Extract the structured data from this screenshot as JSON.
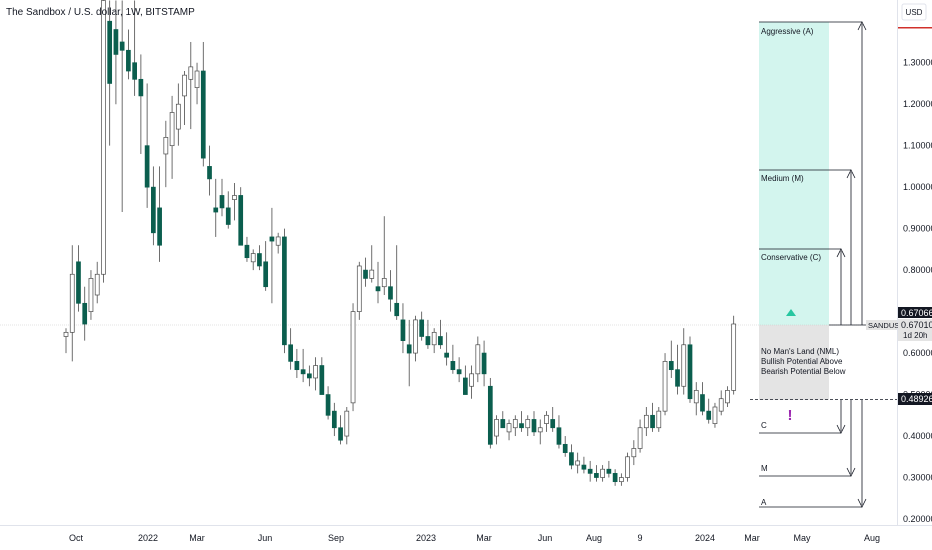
{
  "header": {
    "title": "The Sandbox / U.S. dollar, 1W, BITSTAMP",
    "currency": "USD"
  },
  "price_badges": {
    "zone_top": "0.67066",
    "symbol": "SANDUSD",
    "last": "0.67010",
    "countdown": "1d 20h",
    "zone_bottom": "0.48926"
  },
  "zones": {
    "aggressive": "Aggressive (A)",
    "medium": "Medium (M)",
    "conservative": "Conservative (C)",
    "nml_line1": "No Man's Land (NML)",
    "nml_line2": "Bullish Potential Above",
    "nml_line3": "Bearish Potential Below",
    "low_c": "C",
    "low_m": "M",
    "low_a": "A",
    "exclamation": "!"
  },
  "colors": {
    "up_body": "#ffffff",
    "down_body": "#0b5e4e",
    "wick": "#4a4a4a",
    "target_zone": "#d3f5ee",
    "nml_zone": "#e4e4e4",
    "bull_marker": "#26c6a0",
    "bear_marker": "#9c27b0",
    "text": "#131722"
  },
  "chart_data": {
    "type": "candlestick",
    "title": "The Sandbox / U.S. dollar, 1W, BITSTAMP",
    "y_axis_ticks": [
      0.2,
      0.3,
      0.4,
      0.5,
      0.6,
      0.7,
      0.8,
      0.9,
      1.0,
      1.1,
      1.2,
      1.3
    ],
    "y_axis_labels": [
      "0.20000",
      "0.30000",
      "0.40000",
      "0.50000",
      "0.60000",
      "0.70000",
      "0.80000",
      "0.90000",
      "1.00000",
      "1.10000",
      "1.20000",
      "1.30000"
    ],
    "ylim": [
      0.18,
      1.38
    ],
    "x_axis_labels": [
      "Oct",
      "2022",
      "Mar",
      "Jun",
      "Sep",
      "2023",
      "Mar",
      "Jun",
      "Aug",
      "9",
      "2024",
      "Mar",
      "May",
      "Aug"
    ],
    "levels": {
      "nml_top": 0.67066,
      "nml_bottom": 0.48926,
      "last_price": 0.6701,
      "upside_conservative": 0.855,
      "upside_medium": 1.04,
      "upside_aggressive": 1.395,
      "downside_conservative": 0.42,
      "downside_medium": 0.335,
      "downside_aggressive": 0.225
    },
    "candles": [
      [
        0.64,
        0.66,
        0.6,
        0.65
      ],
      [
        0.65,
        0.86,
        0.58,
        0.79
      ],
      [
        0.82,
        0.86,
        0.7,
        0.72
      ],
      [
        0.72,
        0.76,
        0.63,
        0.67
      ],
      [
        0.7,
        0.8,
        0.68,
        0.78
      ],
      [
        0.74,
        0.82,
        0.72,
        0.79
      ],
      [
        0.79,
        1.55,
        0.77,
        1.45
      ],
      [
        1.4,
        1.45,
        1.1,
        1.25
      ],
      [
        1.38,
        1.45,
        1.2,
        1.32
      ],
      [
        1.35,
        1.45,
        0.94,
        1.33
      ],
      [
        1.33,
        1.38,
        1.26,
        1.28
      ],
      [
        1.3,
        1.45,
        1.22,
        1.26
      ],
      [
        1.26,
        1.32,
        1.08,
        1.22
      ],
      [
        1.1,
        1.25,
        0.95,
        1.0
      ],
      [
        1.0,
        1.05,
        0.86,
        0.89
      ],
      [
        0.95,
        1.05,
        0.82,
        0.86
      ],
      [
        1.08,
        1.16,
        1.0,
        1.12
      ],
      [
        1.1,
        1.22,
        1.02,
        1.18
      ],
      [
        1.14,
        1.25,
        1.1,
        1.2
      ],
      [
        1.22,
        1.28,
        1.15,
        1.27
      ],
      [
        1.26,
        1.35,
        1.14,
        1.29
      ],
      [
        1.24,
        1.3,
        1.2,
        1.28
      ],
      [
        1.28,
        1.35,
        1.05,
        1.07
      ],
      [
        1.05,
        1.1,
        0.98,
        1.02
      ],
      [
        0.95,
        1.02,
        0.88,
        0.94
      ],
      [
        0.98,
        1.02,
        0.93,
        0.95
      ],
      [
        0.95,
        0.99,
        0.9,
        0.91
      ],
      [
        0.97,
        1.01,
        0.92,
        0.98
      ],
      [
        0.98,
        1.0,
        0.86,
        0.86
      ],
      [
        0.86,
        0.88,
        0.82,
        0.83
      ],
      [
        0.82,
        0.85,
        0.8,
        0.84
      ],
      [
        0.84,
        0.86,
        0.8,
        0.81
      ],
      [
        0.82,
        0.87,
        0.75,
        0.76
      ],
      [
        0.88,
        0.95,
        0.72,
        0.87
      ],
      [
        0.86,
        0.89,
        0.84,
        0.88
      ],
      [
        0.88,
        0.9,
        0.6,
        0.62
      ],
      [
        0.62,
        0.66,
        0.56,
        0.58
      ],
      [
        0.58,
        0.61,
        0.54,
        0.56
      ],
      [
        0.56,
        0.61,
        0.53,
        0.55
      ],
      [
        0.55,
        0.57,
        0.52,
        0.54
      ],
      [
        0.54,
        0.59,
        0.51,
        0.57
      ],
      [
        0.57,
        0.59,
        0.5,
        0.5
      ],
      [
        0.5,
        0.52,
        0.44,
        0.45
      ],
      [
        0.46,
        0.48,
        0.4,
        0.42
      ],
      [
        0.42,
        0.45,
        0.38,
        0.39
      ],
      [
        0.4,
        0.47,
        0.38,
        0.46
      ],
      [
        0.48,
        0.72,
        0.46,
        0.7
      ],
      [
        0.7,
        0.82,
        0.68,
        0.81
      ],
      [
        0.8,
        0.83,
        0.76,
        0.78
      ],
      [
        0.78,
        0.86,
        0.77,
        0.8
      ],
      [
        0.76,
        0.82,
        0.72,
        0.75
      ],
      [
        0.76,
        0.93,
        0.74,
        0.78
      ],
      [
        0.76,
        0.8,
        0.7,
        0.73
      ],
      [
        0.72,
        0.86,
        0.68,
        0.69
      ],
      [
        0.68,
        0.72,
        0.6,
        0.63
      ],
      [
        0.62,
        0.68,
        0.52,
        0.6
      ],
      [
        0.6,
        0.69,
        0.58,
        0.68
      ],
      [
        0.68,
        0.7,
        0.63,
        0.64
      ],
      [
        0.64,
        0.68,
        0.61,
        0.62
      ],
      [
        0.62,
        0.66,
        0.6,
        0.65
      ],
      [
        0.64,
        0.68,
        0.61,
        0.62
      ],
      [
        0.6,
        0.65,
        0.57,
        0.59
      ],
      [
        0.58,
        0.62,
        0.55,
        0.56
      ],
      [
        0.56,
        0.59,
        0.53,
        0.55
      ],
      [
        0.54,
        0.57,
        0.5,
        0.5
      ],
      [
        0.52,
        0.57,
        0.49,
        0.55
      ],
      [
        0.55,
        0.64,
        0.53,
        0.62
      ],
      [
        0.6,
        0.63,
        0.52,
        0.55
      ],
      [
        0.52,
        0.54,
        0.37,
        0.38
      ],
      [
        0.4,
        0.45,
        0.38,
        0.44
      ],
      [
        0.44,
        0.46,
        0.42,
        0.42
      ],
      [
        0.41,
        0.44,
        0.39,
        0.43
      ],
      [
        0.42,
        0.45,
        0.4,
        0.44
      ],
      [
        0.43,
        0.46,
        0.41,
        0.42
      ],
      [
        0.42,
        0.45,
        0.4,
        0.44
      ],
      [
        0.44,
        0.46,
        0.4,
        0.41
      ],
      [
        0.41,
        0.44,
        0.38,
        0.42
      ],
      [
        0.43,
        0.46,
        0.41,
        0.45
      ],
      [
        0.44,
        0.47,
        0.41,
        0.42
      ],
      [
        0.42,
        0.45,
        0.37,
        0.38
      ],
      [
        0.38,
        0.4,
        0.35,
        0.36
      ],
      [
        0.36,
        0.38,
        0.32,
        0.33
      ],
      [
        0.33,
        0.36,
        0.31,
        0.34
      ],
      [
        0.33,
        0.35,
        0.31,
        0.32
      ],
      [
        0.32,
        0.34,
        0.29,
        0.31
      ],
      [
        0.31,
        0.33,
        0.29,
        0.3
      ],
      [
        0.3,
        0.33,
        0.29,
        0.32
      ],
      [
        0.32,
        0.34,
        0.3,
        0.31
      ],
      [
        0.31,
        0.32,
        0.28,
        0.29
      ],
      [
        0.29,
        0.31,
        0.28,
        0.3
      ],
      [
        0.3,
        0.36,
        0.29,
        0.35
      ],
      [
        0.35,
        0.39,
        0.33,
        0.37
      ],
      [
        0.37,
        0.44,
        0.36,
        0.42
      ],
      [
        0.42,
        0.47,
        0.4,
        0.45
      ],
      [
        0.45,
        0.48,
        0.41,
        0.42
      ],
      [
        0.42,
        0.47,
        0.41,
        0.46
      ],
      [
        0.46,
        0.6,
        0.45,
        0.58
      ],
      [
        0.58,
        0.63,
        0.54,
        0.56
      ],
      [
        0.56,
        0.62,
        0.5,
        0.52
      ],
      [
        0.52,
        0.66,
        0.5,
        0.62
      ],
      [
        0.62,
        0.64,
        0.48,
        0.49
      ],
      [
        0.48,
        0.53,
        0.45,
        0.51
      ],
      [
        0.5,
        0.53,
        0.45,
        0.46
      ],
      [
        0.46,
        0.49,
        0.43,
        0.44
      ],
      [
        0.43,
        0.48,
        0.42,
        0.47
      ],
      [
        0.46,
        0.51,
        0.45,
        0.49
      ],
      [
        0.48,
        0.52,
        0.47,
        0.51
      ],
      [
        0.51,
        0.69,
        0.5,
        0.6701
      ]
    ]
  }
}
